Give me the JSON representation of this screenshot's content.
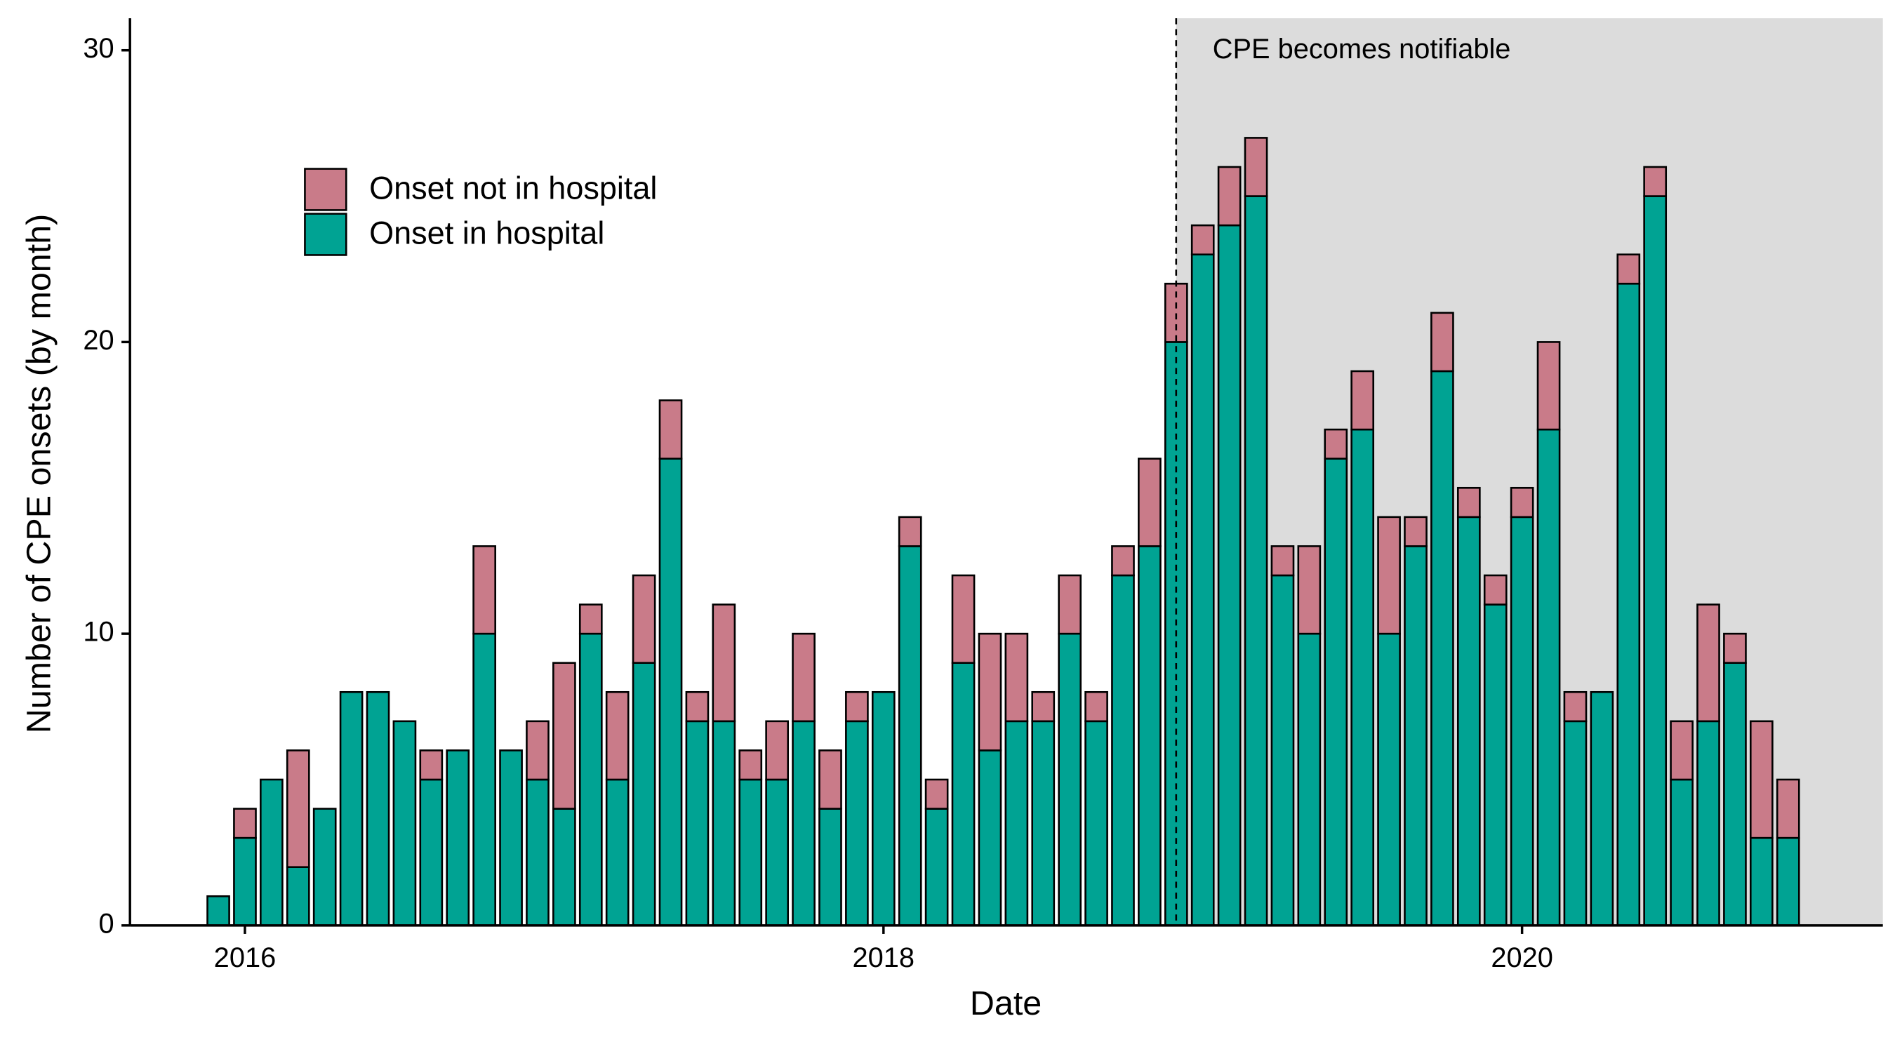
{
  "chart_data": {
    "type": "bar",
    "stacked": true,
    "x_label": "Date",
    "y_label": "Number of CPE onsets (by month)",
    "annotation": {
      "text": "CPE becomes notifiable",
      "x": "2018-12",
      "shade": "#dcdcdc"
    },
    "x": [
      "2015-12",
      "2016-01",
      "2016-02",
      "2016-03",
      "2016-04",
      "2016-05",
      "2016-06",
      "2016-07",
      "2016-08",
      "2016-09",
      "2016-10",
      "2016-11",
      "2016-12",
      "2017-01",
      "2017-02",
      "2017-03",
      "2017-04",
      "2017-05",
      "2017-06",
      "2017-07",
      "2017-08",
      "2017-09",
      "2017-10",
      "2017-11",
      "2017-12",
      "2018-01",
      "2018-02",
      "2018-03",
      "2018-04",
      "2018-05",
      "2018-06",
      "2018-07",
      "2018-08",
      "2018-09",
      "2018-10",
      "2018-11",
      "2018-12",
      "2019-01",
      "2019-02",
      "2019-03",
      "2019-04",
      "2019-05",
      "2019-06",
      "2019-07",
      "2019-08",
      "2019-09",
      "2019-10",
      "2019-11",
      "2019-12",
      "2020-01",
      "2020-02",
      "2020-03",
      "2020-04",
      "2020-05",
      "2020-06",
      "2020-07",
      "2020-08",
      "2020-09",
      "2020-10",
      "2020-11"
    ],
    "series": [
      {
        "name": "Onset in hospital",
        "color": "#00a393",
        "values": [
          1,
          3,
          5,
          2,
          4,
          8,
          8,
          7,
          5,
          6,
          10,
          6,
          5,
          4,
          10,
          5,
          9,
          16,
          7,
          7,
          5,
          5,
          7,
          4,
          7,
          8,
          13,
          4,
          9,
          6,
          7,
          7,
          10,
          7,
          12,
          13,
          20,
          23,
          24,
          25,
          12,
          10,
          16,
          17,
          10,
          13,
          19,
          14,
          11,
          14,
          17,
          7,
          8,
          22,
          25,
          5,
          7,
          9,
          3,
          3
        ]
      },
      {
        "name": "Onset not in hospital",
        "color": "#c97b89",
        "values": [
          0,
          1,
          0,
          4,
          0,
          0,
          0,
          0,
          1,
          0,
          3,
          0,
          2,
          5,
          1,
          3,
          3,
          2,
          1,
          4,
          1,
          2,
          3,
          2,
          1,
          0,
          1,
          1,
          3,
          4,
          3,
          1,
          2,
          1,
          1,
          3,
          2,
          1,
          2,
          2,
          1,
          3,
          1,
          2,
          4,
          1,
          2,
          1,
          1,
          1,
          3,
          1,
          0,
          1,
          1,
          2,
          4,
          1,
          4,
          2
        ]
      }
    ],
    "xlim": [
      2015.64,
      2021.13
    ],
    "xticks": [
      2016,
      2018,
      2020
    ],
    "ylim": [
      0,
      31.1
    ],
    "yticks": [
      0,
      10,
      20,
      30
    ],
    "legend": "top-left"
  }
}
